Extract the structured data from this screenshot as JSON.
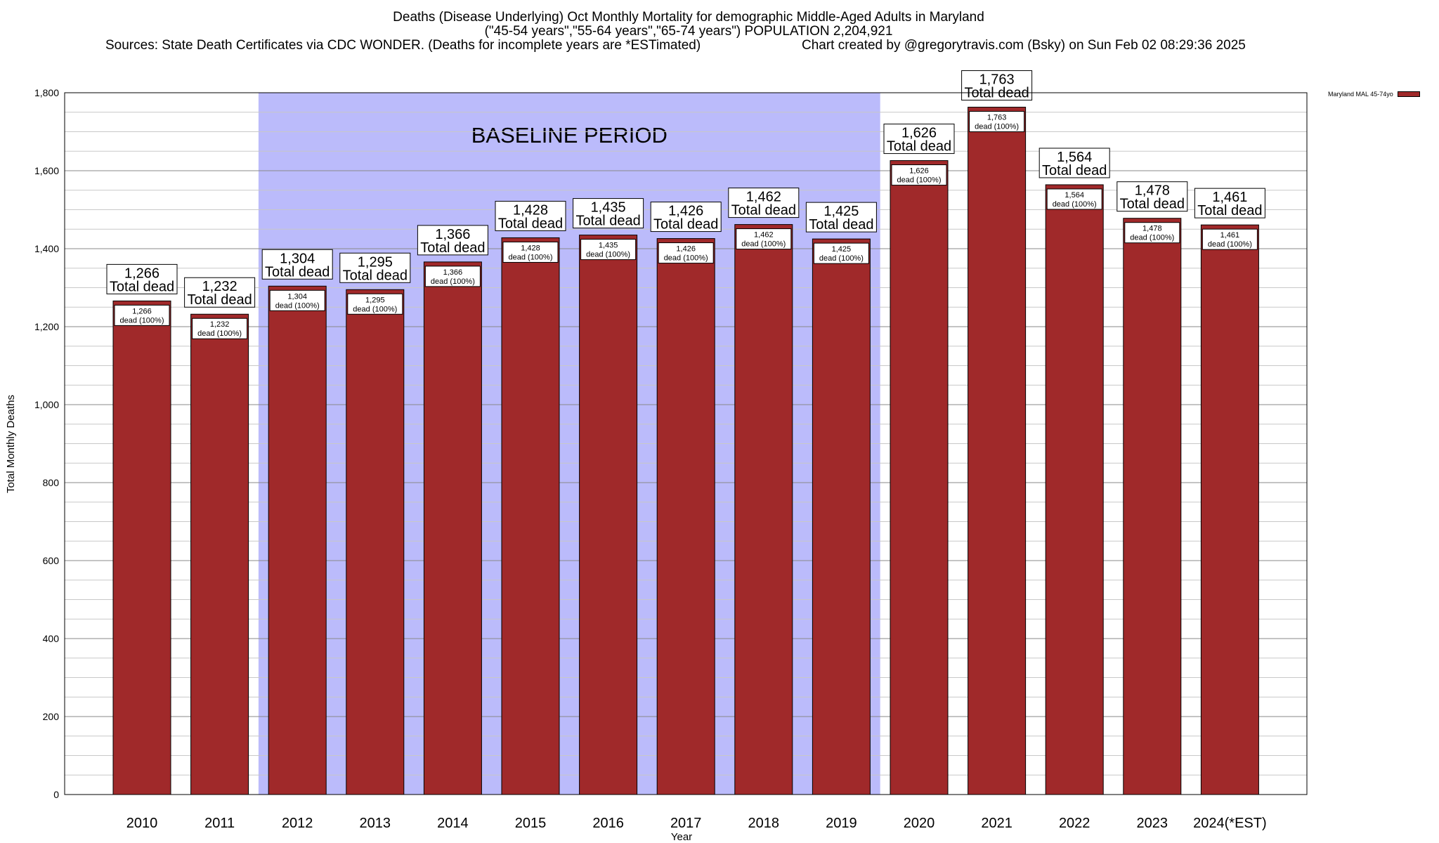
{
  "chart_data": {
    "type": "bar",
    "title": "Deaths (Disease Underlying) Oct Monthly Mortality for demographic Middle-Aged Adults in Maryland",
    "subtitle": "(\"45-54 years\",\"55-64 years\",\"65-74 years\") POPULATION 2,204,921",
    "source": "Sources: State Death Certificates via CDC WONDER. (Deaths for incomplete years are *ESTimated)",
    "credit": "Chart created by @gregorytravis.com (Bsky) on Sun Feb 02 08:29:36 2025",
    "xlabel": "Year",
    "ylabel": "Total Monthly Deaths",
    "ylim": [
      0,
      1800
    ],
    "y_ticks": [
      "0",
      "200",
      "400",
      "600",
      "800",
      "1,000",
      "1,200",
      "1,400",
      "1,600",
      "1,800"
    ],
    "categories": [
      "2010",
      "2011",
      "2012",
      "2013",
      "2014",
      "2015",
      "2016",
      "2017",
      "2018",
      "2019",
      "2020",
      "2021",
      "2022",
      "2023",
      "2024(*EST)"
    ],
    "series": [
      {
        "name": "Maryland MAL 45-74yo",
        "values": [
          1266,
          1232,
          1304,
          1295,
          1366,
          1428,
          1435,
          1426,
          1462,
          1425,
          1626,
          1763,
          1564,
          1478,
          1461
        ]
      }
    ],
    "value_labels": [
      "1,266",
      "1,232",
      "1,304",
      "1,295",
      "1,366",
      "1,428",
      "1,435",
      "1,426",
      "1,462",
      "1,425",
      "1,626",
      "1,763",
      "1,564",
      "1,478",
      "1,461"
    ],
    "total_label_suffix": "Total dead",
    "inner_label_suffix": "dead (100%)",
    "baseline": {
      "label": "BASELINE PERIOD",
      "start": "2012",
      "end": "2019"
    },
    "grid": true,
    "legend_position": "top-right",
    "colors": {
      "bar": "#a0292a",
      "baseline": "#bbbbfb",
      "grid": "#c8c8c8"
    }
  }
}
